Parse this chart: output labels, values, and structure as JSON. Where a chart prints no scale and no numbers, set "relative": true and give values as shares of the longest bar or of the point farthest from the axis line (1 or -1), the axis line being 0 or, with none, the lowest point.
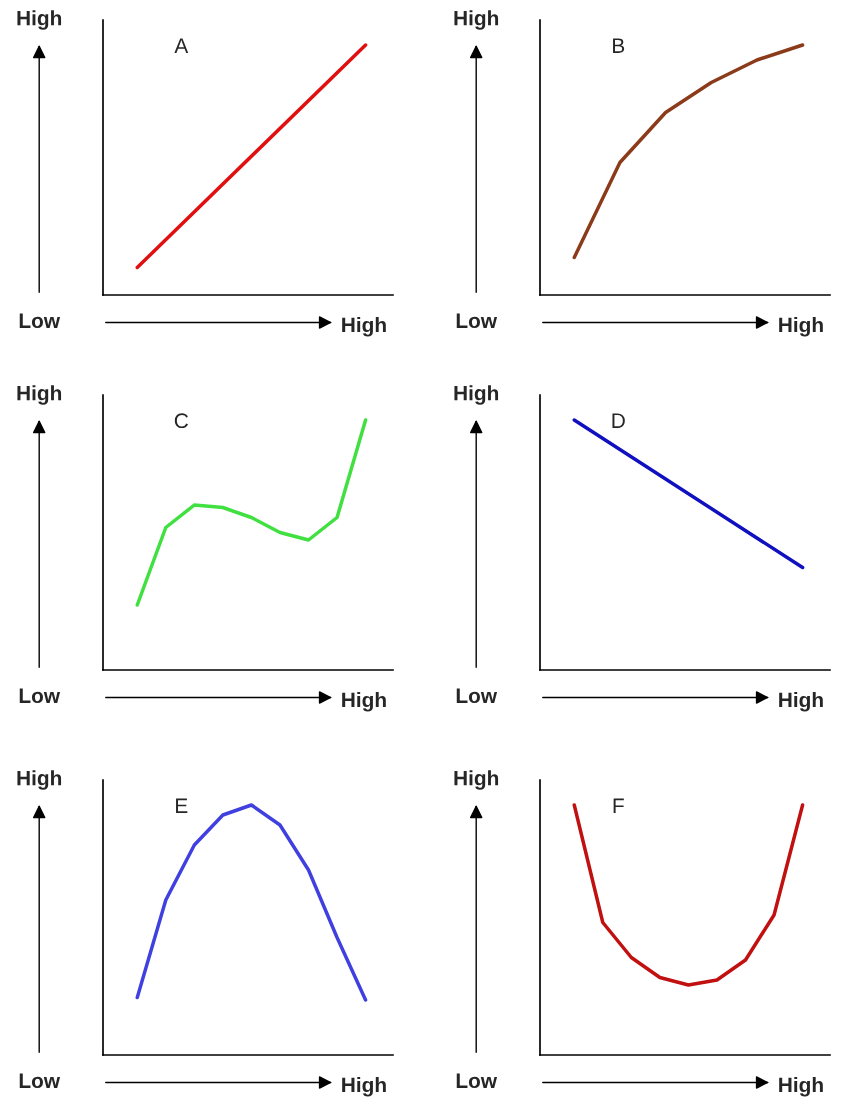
{
  "chart_data": [
    {
      "type": "line",
      "title": "A",
      "xlabel": "High",
      "ylabel": "High",
      "annotations": [
        "Low"
      ],
      "relative": true,
      "categories": [
        null,
        null
      ],
      "series": [
        {
          "color": "#e01010",
          "values": [
            0.11,
            1
          ]
        }
      ]
    },
    {
      "type": "line",
      "title": "B",
      "xlabel": "High",
      "ylabel": "High",
      "annotations": [
        "Low"
      ],
      "relative": true,
      "categories": [
        null,
        null,
        null,
        null,
        null,
        null
      ],
      "series": [
        {
          "color": "#8b3a1a",
          "values": [
            0.15,
            0.53,
            0.73,
            0.85,
            0.94,
            1
          ]
        }
      ]
    },
    {
      "type": "line",
      "title": "C",
      "xlabel": "High",
      "ylabel": "High",
      "annotations": [
        "Low"
      ],
      "relative": true,
      "categories": [
        null,
        null,
        null,
        null,
        null,
        null,
        null,
        null,
        null
      ],
      "series": [
        {
          "color": "#40e040",
          "values": [
            0.26,
            0.57,
            0.66,
            0.65,
            0.61,
            0.55,
            0.52,
            0.61,
            1
          ]
        }
      ]
    },
    {
      "type": "line",
      "title": "D",
      "xlabel": "High",
      "ylabel": "High",
      "annotations": [
        "Low"
      ],
      "relative": true,
      "categories": [
        null,
        null
      ],
      "series": [
        {
          "color": "#1010c0",
          "values": [
            1,
            0.41
          ]
        }
      ]
    },
    {
      "type": "line",
      "title": "E",
      "xlabel": "High",
      "ylabel": "High",
      "annotations": [
        "Low"
      ],
      "relative": true,
      "categories": [
        null,
        null,
        null,
        null,
        null,
        null,
        null,
        null,
        null
      ],
      "series": [
        {
          "color": "#4040e0",
          "values": [
            0.23,
            0.62,
            0.84,
            0.96,
            1,
            0.92,
            0.74,
            0.47,
            0.22
          ]
        }
      ]
    },
    {
      "type": "line",
      "title": "F",
      "xlabel": "High",
      "ylabel": "High",
      "annotations": [
        "Low"
      ],
      "relative": true,
      "categories": [
        null,
        null,
        null,
        null,
        null,
        null,
        null,
        null,
        null
      ],
      "series": [
        {
          "color": "#c01010",
          "values": [
            1,
            0.53,
            0.39,
            0.31,
            0.28,
            0.3,
            0.38,
            0.56,
            1
          ]
        }
      ]
    }
  ]
}
